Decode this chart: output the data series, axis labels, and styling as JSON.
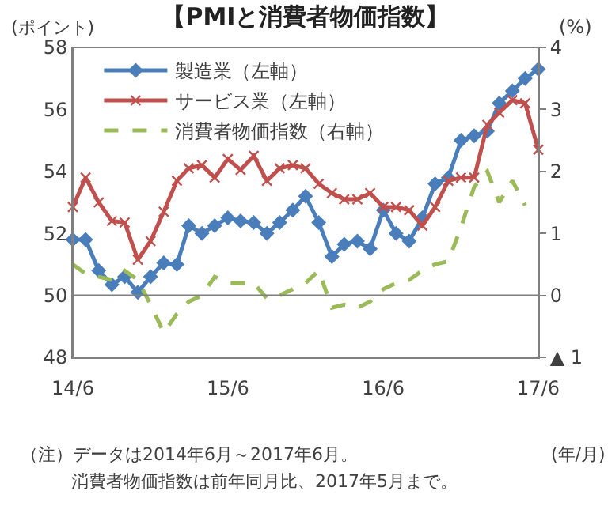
{
  "chart_data": {
    "type": "line",
    "title": "【PMIと消費者物価指数】",
    "ylabel": "(ポイント)",
    "y2label": "(%)",
    "xlabel": "(年/月)",
    "x": [
      "2014-06",
      "2014-07",
      "2014-08",
      "2014-09",
      "2014-10",
      "2014-11",
      "2014-12",
      "2015-01",
      "2015-02",
      "2015-03",
      "2015-04",
      "2015-05",
      "2015-06",
      "2015-07",
      "2015-08",
      "2015-09",
      "2015-10",
      "2015-11",
      "2015-12",
      "2016-01",
      "2016-02",
      "2016-03",
      "2016-04",
      "2016-05",
      "2016-06",
      "2016-07",
      "2016-08",
      "2016-09",
      "2016-10",
      "2016-11",
      "2016-12",
      "2017-01",
      "2017-02",
      "2017-03",
      "2017-04",
      "2017-05",
      "2017-06"
    ],
    "series": [
      {
        "name": "製造業（左軸）",
        "color": "#4a7ebb",
        "marker": "diamond",
        "line_style": "solid",
        "values": [
          51.8,
          51.8,
          50.8,
          50.35,
          50.6,
          50.1,
          50.6,
          51.05,
          51.0,
          52.25,
          52.0,
          52.25,
          52.5,
          52.4,
          52.35,
          52.0,
          52.35,
          52.75,
          53.2,
          52.35,
          51.25,
          51.65,
          51.75,
          51.5,
          52.75,
          52.0,
          51.75,
          52.5,
          53.6,
          53.8,
          55.0,
          55.15,
          55.3,
          56.2,
          56.6,
          57.0,
          57.3
        ]
      },
      {
        "name": "サービス業（左軸）",
        "color": "#c0504d",
        "marker": "cross",
        "line_style": "solid",
        "values": [
          52.85,
          53.8,
          53.0,
          52.4,
          52.35,
          51.15,
          51.75,
          52.7,
          53.7,
          54.1,
          54.2,
          53.8,
          54.4,
          54.05,
          54.5,
          53.7,
          54.1,
          54.2,
          54.1,
          53.6,
          53.3,
          53.1,
          53.1,
          53.3,
          52.85,
          52.85,
          52.75,
          52.25,
          52.85,
          53.7,
          53.8,
          53.8,
          55.5,
          55.9,
          56.3,
          56.2,
          54.7
        ]
      },
      {
        "name": "消費者物価指数（右軸）",
        "color": "#9bbb59",
        "marker": "none",
        "line_style": "dashed",
        "axis": "y2",
        "values": [
          0.5,
          0.35,
          0.3,
          0.25,
          0.4,
          0.25,
          -0.15,
          -0.6,
          -0.3,
          -0.1,
          0.0,
          0.3,
          0.2,
          0.2,
          0.2,
          -0.05,
          0.0,
          0.1,
          0.2,
          0.4,
          -0.2,
          -0.15,
          -0.2,
          -0.1,
          0.1,
          0.2,
          0.25,
          0.4,
          0.5,
          0.55,
          1.1,
          1.75,
          2.0,
          1.5,
          1.85,
          1.45,
          null
        ]
      }
    ],
    "xlim": [
      "2014-06",
      "2017-06"
    ],
    "xticks": [
      {
        "value": "2014-06",
        "label": "14/6"
      },
      {
        "value": "2015-06",
        "label": "15/6"
      },
      {
        "value": "2016-06",
        "label": "16/6"
      },
      {
        "value": "2017-06",
        "label": "17/6"
      }
    ],
    "ylim": [
      48,
      58
    ],
    "yticks": [
      48,
      50,
      52,
      54,
      56,
      58
    ],
    "y2lim": [
      -1,
      4
    ],
    "y2ticks": [
      {
        "value": -1,
        "label": "▲ 1"
      },
      0,
      1,
      2,
      3,
      4
    ],
    "ref_lines": [
      {
        "axis": "y",
        "value": 50,
        "color": "#808080"
      }
    ],
    "grid": false,
    "legend": "top left",
    "annotations": [
      "（注）データは2014年6月～2017年6月。",
      "消費者物価指数は前年同月比、2017年5月まで。"
    ]
  }
}
